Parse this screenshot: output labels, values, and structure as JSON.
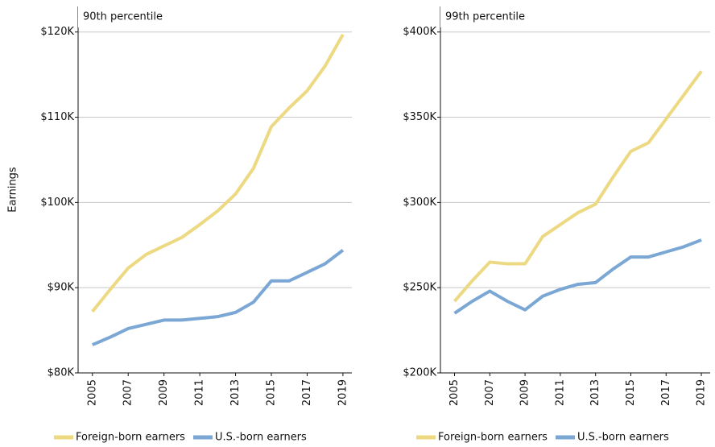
{
  "chart_data": [
    {
      "type": "line",
      "subtitle": "90th percentile",
      "y_label": "Earnings",
      "x": [
        2005,
        2006,
        2007,
        2008,
        2009,
        2010,
        2011,
        2012,
        2013,
        2014,
        2015,
        2016,
        2017,
        2018,
        2019
      ],
      "xlim": [
        2004.2,
        2019.5
      ],
      "xticks": [
        2005,
        2007,
        2009,
        2011,
        2013,
        2015,
        2017,
        2019
      ],
      "ylim": [
        80000,
        123000
      ],
      "yticks": [
        {
          "value": 80000,
          "label": "$80K"
        },
        {
          "value": 90000,
          "label": "$90K"
        },
        {
          "value": 100000,
          "label": "$100K"
        },
        {
          "value": 110000,
          "label": "$110K"
        },
        {
          "value": 120000,
          "label": "$120K"
        }
      ],
      "grid": true,
      "legend": "bottom",
      "series": [
        {
          "name": "Foreign-born earners",
          "color": "#ecd982",
          "values": [
            87200,
            89800,
            92300,
            93900,
            94900,
            95900,
            97400,
            99000,
            101000,
            104000,
            108900,
            111100,
            113100,
            116000,
            119700
          ]
        },
        {
          "name": "U.S.-born earners",
          "color": "#7ba7d5",
          "values": [
            83300,
            84200,
            85200,
            85700,
            86200,
            86200,
            86400,
            86600,
            87100,
            88300,
            90800,
            90800,
            91800,
            92800,
            94400
          ]
        }
      ]
    },
    {
      "type": "line",
      "subtitle": "99th percentile",
      "x": [
        2005,
        2006,
        2007,
        2008,
        2009,
        2010,
        2011,
        2012,
        2013,
        2014,
        2015,
        2016,
        2017,
        2018,
        2019
      ],
      "xlim": [
        2004.2,
        2019.5
      ],
      "xticks": [
        2005,
        2007,
        2009,
        2011,
        2013,
        2015,
        2017,
        2019
      ],
      "ylim": [
        200000,
        415000
      ],
      "yticks": [
        {
          "value": 200000,
          "label": "$200K"
        },
        {
          "value": 250000,
          "label": "$250K"
        },
        {
          "value": 300000,
          "label": "$300K"
        },
        {
          "value": 350000,
          "label": "$350K"
        },
        {
          "value": 400000,
          "label": "$400K"
        }
      ],
      "grid": true,
      "legend": "bottom",
      "series": [
        {
          "name": "Foreign-born earners",
          "color": "#ecd982",
          "values": [
            242000,
            254000,
            265000,
            264000,
            264000,
            280000,
            287000,
            294000,
            299000,
            315000,
            330000,
            335000,
            349000,
            363000,
            377000
          ]
        },
        {
          "name": "U.S.-born earners",
          "color": "#7ba7d5",
          "values": [
            235000,
            242000,
            248000,
            242000,
            237000,
            245000,
            249000,
            252000,
            253000,
            261000,
            268000,
            268000,
            271000,
            274000,
            278000
          ]
        }
      ]
    }
  ]
}
